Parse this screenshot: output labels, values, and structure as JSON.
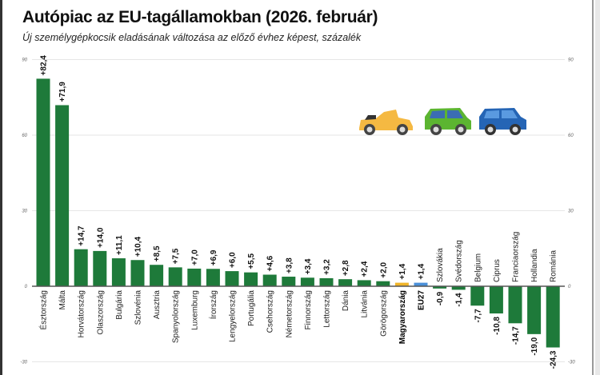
{
  "title": "Autópiac az EU-tagállamokban (2026. február)",
  "subtitle": "Új személygépkocsik eladásának változása az előző évhez képest, százalék",
  "chart_data": {
    "type": "bar",
    "title": "Autópiac az EU-tagállamokban (2026. február)",
    "subtitle": "Új személygépkocsik eladásának változása az előző évhez képest, százalék",
    "xlabel": "",
    "ylabel": "",
    "ylim": [
      -30,
      90
    ],
    "yticks": [
      -30,
      0,
      30,
      60,
      90
    ],
    "grid": true,
    "categories": [
      "Észtország",
      "Málta",
      "Horvátország",
      "Olaszország",
      "Bulgária",
      "Szlovénia",
      "Ausztria",
      "Spanyolország",
      "Luxemburg",
      "Írország",
      "Lengyelország",
      "Portugália",
      "Csehország",
      "Németország",
      "Finnország",
      "Lettország",
      "Dánia",
      "Litvánia",
      "Görögország",
      "Magyarország",
      "EU27",
      "Szlovákia",
      "Svédország",
      "Belgium",
      "Ciprus",
      "Franciaország",
      "Hollandia",
      "Románia"
    ],
    "values": [
      82.4,
      71.9,
      14.7,
      14.0,
      11.1,
      10.4,
      8.5,
      7.5,
      7.0,
      6.9,
      6.0,
      5.5,
      4.6,
      3.8,
      3.4,
      3.2,
      2.8,
      2.4,
      2.0,
      1.4,
      1.4,
      -0.9,
      -1.4,
      -7.7,
      -10.8,
      -14.7,
      -19.0,
      -24.3
    ],
    "labels": [
      "+82,4",
      "+71,9",
      "+14,7",
      "+14,0",
      "+11,1",
      "+10,4",
      "+8,5",
      "+7,5",
      "+7,0",
      "+6,9",
      "+6,0",
      "+5,5",
      "+4,6",
      "+3,8",
      "+3,4",
      "+3,2",
      "+2,8",
      "+2,4",
      "+2,0",
      "+1,4",
      "+1,4",
      "-0,9",
      "-1,4",
      "-7,7",
      "-10,8",
      "-14,7",
      "-19,0",
      "-24,3"
    ],
    "highlight": {
      "Magyarország": "#f0b429",
      "EU27": "#4a90d9"
    },
    "bold_categories": [
      "Magyarország",
      "EU27"
    ],
    "colors": {
      "bar": "#1e7a3a",
      "zero_line": "#555555",
      "grid": "#e6e6e6"
    }
  },
  "illustration": [
    "yellow-convertible-car-icon",
    "green-car-icon",
    "blue-car-icon"
  ]
}
